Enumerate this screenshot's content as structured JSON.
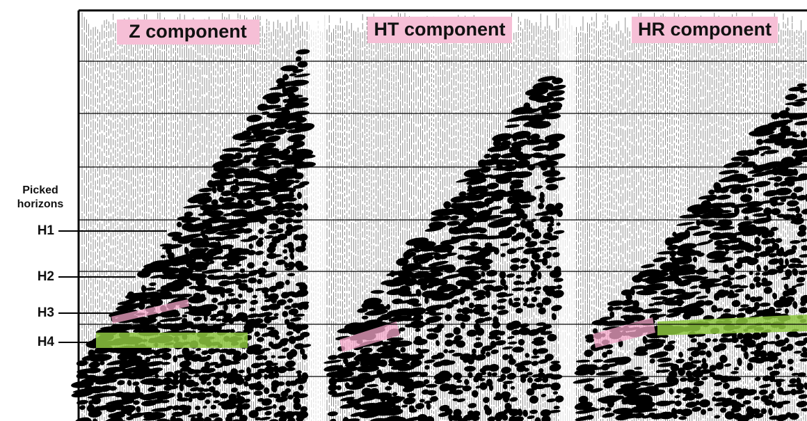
{
  "panels": [
    {
      "label": "Z component"
    },
    {
      "label": "HT component"
    },
    {
      "label": "HR component"
    }
  ],
  "legend": {
    "title": [
      "Picked",
      "horizons"
    ],
    "horizons": [
      "H1",
      "H2",
      "H3",
      "H4"
    ]
  }
}
